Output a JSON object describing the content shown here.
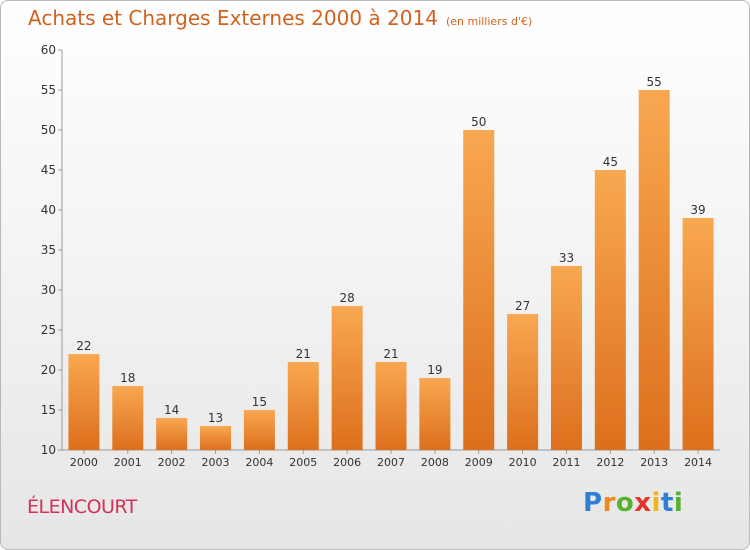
{
  "header": {
    "title": "Achats et Charges Externes 2000 à 2014",
    "unit": "(en milliers d'€)"
  },
  "commune": "ÉLENCOURT",
  "logo": {
    "letters": [
      "P",
      "r",
      "o",
      "x",
      "i",
      "t",
      "i"
    ],
    "colors": [
      "#2e7fcf",
      "#f08a1c",
      "#58b030",
      "#e8322c",
      "#f2b418",
      "#2e7fcf",
      "#58b030"
    ]
  },
  "colors": {
    "bar_top": "#f8a851",
    "bar_bottom": "#dd6f1c",
    "title": "#d0631f",
    "commune": "#d43157"
  },
  "chart_data": {
    "type": "bar",
    "categories": [
      "2000",
      "2001",
      "2002",
      "2003",
      "2004",
      "2005",
      "2006",
      "2007",
      "2008",
      "2009",
      "2010",
      "2011",
      "2012",
      "2013",
      "2014"
    ],
    "values": [
      22,
      18,
      14,
      13,
      15,
      21,
      28,
      21,
      19,
      50,
      27,
      33,
      45,
      55,
      39
    ],
    "ylim": [
      10,
      60
    ],
    "yticks": [
      10,
      15,
      20,
      25,
      30,
      35,
      40,
      45,
      50,
      55,
      60
    ],
    "grid": false
  }
}
